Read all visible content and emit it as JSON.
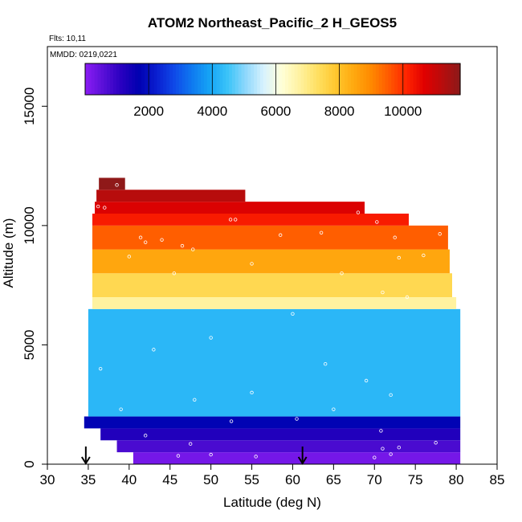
{
  "chart_data": {
    "type": "heatmap",
    "title": "ATOM2 Northeast_Pacific_2 H_GEOS5",
    "flights_label": "Flts: 10,11",
    "dates_label": "MMDD: 0219,0221",
    "xlabel": "Latitude (deg N)",
    "ylabel": "Altitude (m)",
    "xlim": [
      30,
      85
    ],
    "ylim": [
      0,
      17500
    ],
    "xticks": [
      "30",
      "35",
      "40",
      "45",
      "50",
      "55",
      "60",
      "65",
      "70",
      "75",
      "80",
      "85"
    ],
    "yticks": [
      "0",
      "5000",
      "10000",
      "15000"
    ],
    "colorbar": {
      "range": [
        0,
        11800
      ],
      "ticks": [
        "2000",
        "4000",
        "6000",
        "8000",
        "10000"
      ],
      "colors": [
        "#8b1cf5",
        "#5a10d8",
        "#2a00c0",
        "#0000b0",
        "#0a1ed0",
        "#0f4ae8",
        "#0f7af0",
        "#16a6f6",
        "#3cc4f8",
        "#8fd8fc",
        "#d8f2fe",
        "#ffffd8",
        "#fff2a0",
        "#ffe062",
        "#ffc830",
        "#ffaa10",
        "#ff8a00",
        "#ff5a00",
        "#ff2400",
        "#e00000",
        "#b80c0c",
        "#8b1a1a"
      ]
    },
    "value_rule": "H_GEOS5 value approximately equals altitude in meters",
    "altitude_band_m": 500,
    "coverage": [
      {
        "alt_min": 0,
        "alt_max": 500,
        "lat_min": 40.5,
        "lat_max": 80.5
      },
      {
        "alt_min": 500,
        "alt_max": 1000,
        "lat_min": 38.5,
        "lat_max": 80.5
      },
      {
        "alt_min": 1000,
        "alt_max": 1500,
        "lat_min": 36.5,
        "lat_max": 80.5
      },
      {
        "alt_min": 1500,
        "alt_max": 2000,
        "lat_min": 34.5,
        "lat_max": 80.5
      },
      {
        "alt_min": 2000,
        "alt_max": 6500,
        "lat_min": 35,
        "lat_max": 80.5
      },
      {
        "alt_min": 6500,
        "alt_max": 7000,
        "lat_min": 35.5,
        "lat_max": 80
      },
      {
        "alt_min": 7000,
        "alt_max": 8000,
        "lat_min": 35.5,
        "lat_max": 79.5
      },
      {
        "alt_min": 8000,
        "alt_max": 9000,
        "lat_min": 35.5,
        "lat_max": 79.2
      },
      {
        "alt_min": 9000,
        "alt_max": 10000,
        "lat_min": 35.5,
        "lat_max": 79
      },
      {
        "alt_min": 10000,
        "alt_max": 10500,
        "lat_min": 35.5,
        "lat_max": 74.2
      },
      {
        "alt_min": 10500,
        "alt_max": 11000,
        "lat_min": 35.8,
        "lat_max": 68.8
      },
      {
        "alt_min": 11000,
        "alt_max": 11500,
        "lat_min": 36,
        "lat_max": 54.2
      },
      {
        "alt_min": 11500,
        "alt_max": 12000,
        "lat_min": 36.3,
        "lat_max": 39.5
      }
    ],
    "arrows_lat": [
      34.7,
      61.2
    ],
    "sample_points": [
      [
        36.2,
        10800
      ],
      [
        37.0,
        10750
      ],
      [
        38.5,
        11700
      ],
      [
        41.4,
        9500
      ],
      [
        42.0,
        9300
      ],
      [
        44.0,
        9400
      ],
      [
        46.5,
        9150
      ],
      [
        47.8,
        9000
      ],
      [
        52.4,
        10250
      ],
      [
        53.0,
        10250
      ],
      [
        58.5,
        9600
      ],
      [
        63.5,
        9700
      ],
      [
        68.0,
        10550
      ],
      [
        70.3,
        10150
      ],
      [
        72.5,
        9500
      ],
      [
        78.0,
        9650
      ],
      [
        76.0,
        8750
      ],
      [
        73.0,
        8650
      ],
      [
        40.0,
        8700
      ],
      [
        55.0,
        8400
      ],
      [
        45.5,
        8000
      ],
      [
        66.0,
        8000
      ],
      [
        71.0,
        7200
      ],
      [
        74.0,
        7000
      ],
      [
        60.0,
        6300
      ],
      [
        50.0,
        5300
      ],
      [
        43.0,
        4800
      ],
      [
        64.0,
        4200
      ],
      [
        36.5,
        4000
      ],
      [
        69.0,
        3500
      ],
      [
        55.0,
        3000
      ],
      [
        48.0,
        2700
      ],
      [
        72.0,
        2900
      ],
      [
        39.0,
        2300
      ],
      [
        65.0,
        2300
      ],
      [
        52.5,
        1800
      ],
      [
        60.5,
        1900
      ],
      [
        70.8,
        1400
      ],
      [
        42.0,
        1200
      ],
      [
        47.5,
        850
      ],
      [
        71.0,
        650
      ],
      [
        73.0,
        700
      ],
      [
        46.0,
        350
      ],
      [
        50.0,
        400
      ],
      [
        55.5,
        320
      ],
      [
        70.0,
        280
      ],
      [
        72.0,
        420
      ],
      [
        77.5,
        900
      ]
    ]
  }
}
